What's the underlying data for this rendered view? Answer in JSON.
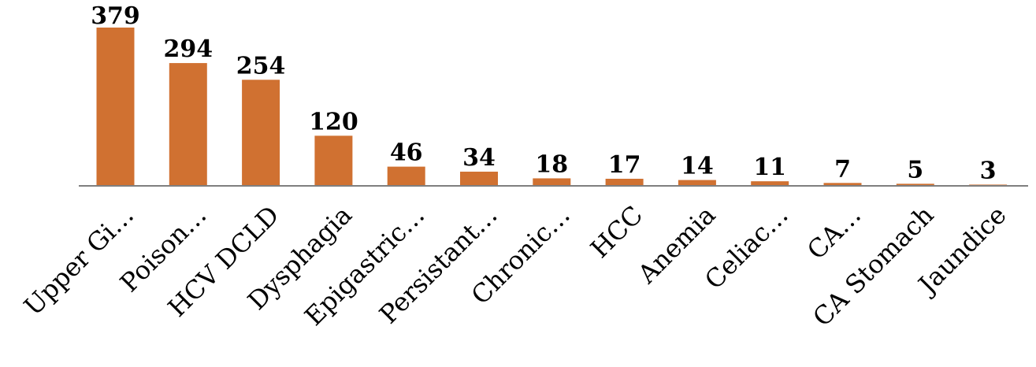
{
  "chart_data": {
    "type": "bar",
    "categories": [
      "Upper Gi…",
      "Poison…",
      "HCV DCLD",
      "Dysphagia",
      "Epigastric…",
      "Persistant…",
      "Chronic…",
      "HCC",
      "Anemia",
      "Celiac…",
      "CA…",
      "CA Stomach",
      "Jaundice"
    ],
    "values": [
      379,
      294,
      254,
      120,
      46,
      34,
      18,
      17,
      14,
      11,
      7,
      5,
      3
    ],
    "data_labels": [
      "379",
      "294",
      "254",
      "120",
      "46",
      "34",
      "18",
      "17",
      "14",
      "11",
      "7",
      "5",
      "3"
    ],
    "ylim": [
      0,
      379
    ],
    "grid": false,
    "legend": "none",
    "bar_color": "#D07131",
    "axis_color": "#7f7f7f"
  }
}
